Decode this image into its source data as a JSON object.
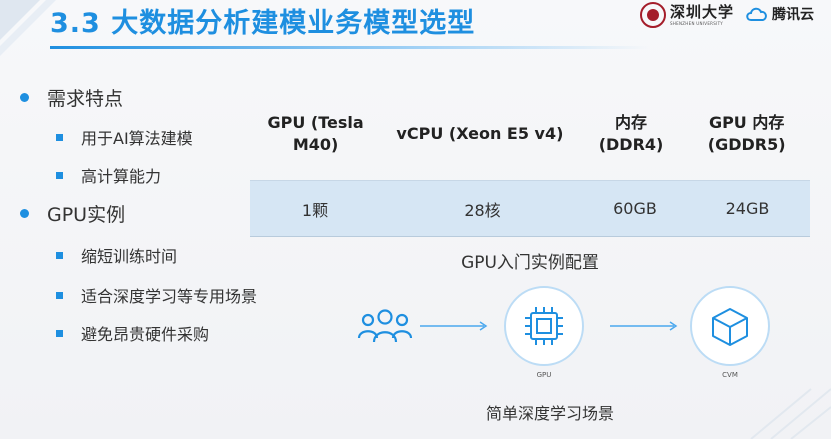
{
  "header": {
    "title": "3.3 大数据分析建模业务模型选型",
    "university_logo_text": "深圳大学",
    "university_logo_en": "SHENZHEN UNIVERSITY",
    "cloud_logo_text": "腾讯云"
  },
  "colors": {
    "accent": "#1e8fe0",
    "table_row_bg": "#d6e6f4"
  },
  "bullets": [
    {
      "label": "需求特点",
      "children": [
        "用于AI算法建模",
        "高计算能力"
      ]
    },
    {
      "label": "GPU实例",
      "children": [
        "缩短训练时间",
        "适合深度学习等专用场景",
        "避免昂贵硬件采购"
      ]
    }
  ],
  "table": {
    "headers": [
      "GPU (Tesla M40)",
      "vCPU (Xeon E5 v4)",
      "内存 (DDR4)",
      "GPU 内存 (GDDR5)"
    ],
    "rows": [
      [
        "1颗",
        "28核",
        "60GB",
        "24GB"
      ]
    ]
  },
  "diagram": {
    "title": "GPU入门实例配置",
    "caption": "简单深度学习场景",
    "node_gpu": "GPU",
    "node_cvm": "CVM",
    "icons": [
      "users-icon",
      "chip-icon",
      "cube-icon",
      "arrow-right-icon"
    ]
  }
}
